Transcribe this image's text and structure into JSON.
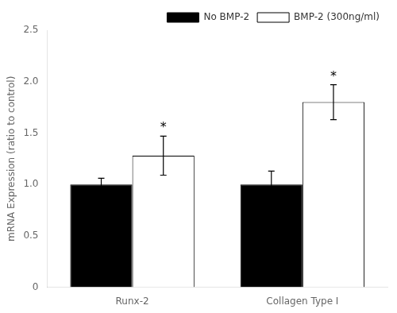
{
  "chart_data": {
    "type": "bar",
    "categories": [
      "Runx-2",
      "Collagen Type I"
    ],
    "series": [
      {
        "name": "No BMP-2",
        "color": "#000000",
        "values": [
          1.0,
          1.0
        ],
        "errors": [
          0.06,
          0.13
        ]
      },
      {
        "name": "BMP-2 (300ng/ml)",
        "color": "#ffffff",
        "values": [
          1.28,
          1.8
        ],
        "errors": [
          0.19,
          0.17
        ]
      }
    ],
    "ylabel": "mRNA Expression (ratio to control)",
    "ylim": [
      0,
      2.5
    ],
    "yticks": [
      0,
      0.5,
      {
        "value": 1,
        "label": "1.0"
      },
      1.5,
      {
        "value": 2,
        "label": "2.0"
      },
      2.5
    ],
    "grid": false,
    "legend": "upper right",
    "annotations": [
      {
        "text": "*",
        "series": "BMP-2 (300ng/ml)",
        "category": "Runx-2"
      },
      {
        "text": "*",
        "series": "BMP-2 (300ng/ml)",
        "category": "Collagen Type I"
      }
    ]
  }
}
